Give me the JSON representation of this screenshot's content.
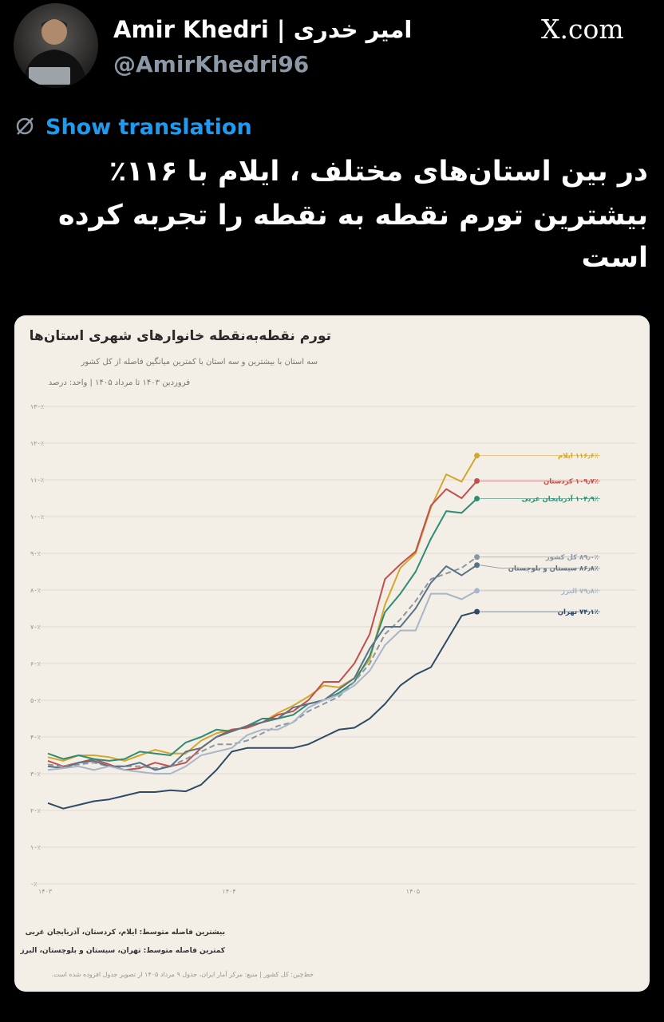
{
  "tweet": {
    "author_name": "Amir Khedri | امیر خدری",
    "handle": "@AmirKhedri96",
    "site": "X.com",
    "translate": "Show translation",
    "text": [
      "در بین استان‌های مختلف ، ایلام با ۱۱۶٪",
      "بیشترین تورم نقطه به نقطه را تجربه کرده",
      "است"
    ]
  },
  "chart_data": {
    "type": "line",
    "title": "تورم نقطه‌به‌نقطه خانوارهای شهری استان‌ها",
    "subtitle": "سه استان با بیشترین و سه استان با کمترین میانگین فاصله از کل کشور",
    "caption": "فروردین ۱۴۰۳ تا مرداد ۱۴۰۵ | واحد: درصد",
    "notes": [
      "بیشترین فاصله متوسط: ایلام، کردستان، آذربایجان غربی",
      "کمترین فاصله متوسط: تهران، سیستان و بلوچستان، البرز",
      "خط‌چین: کل کشور | منبع: مرکز آمار ایران، جدول ۹ مرداد ۱۴۰۵ از تصویر جدول افزوده شده است."
    ],
    "categories": [
      "۱۴۰۳",
      null,
      null,
      null,
      null,
      null,
      null,
      null,
      null,
      null,
      null,
      null,
      "۱۴۰۴",
      null,
      null,
      null,
      null,
      null,
      null,
      null,
      null,
      null,
      null,
      null,
      "۱۴۰۵",
      null,
      null,
      null,
      null
    ],
    "ylim": [
      0,
      130
    ],
    "yticks": [
      {
        "value": 0,
        "label": "۰٪"
      },
      {
        "value": 10,
        "label": "۱۰٪"
      },
      {
        "value": 20,
        "label": "۲۰٪"
      },
      {
        "value": 30,
        "label": "۳۰٪"
      },
      {
        "value": 40,
        "label": "۴۰٪"
      },
      {
        "value": 50,
        "label": "۵۰٪"
      },
      {
        "value": 60,
        "label": "۶۰٪"
      },
      {
        "value": 70,
        "label": "۷۰٪"
      },
      {
        "value": 80,
        "label": "۸۰٪"
      },
      {
        "value": 90,
        "label": "۹۰٪"
      },
      {
        "value": 100,
        "label": "۱۰۰٪"
      },
      {
        "value": 110,
        "label": "۱۱۰٪"
      },
      {
        "value": 120,
        "label": "۱۲۰٪"
      },
      {
        "value": 130,
        "label": "۱۳۰٪"
      }
    ],
    "grid": true,
    "series": [
      {
        "name": "ایلام",
        "color": "#d4a72c",
        "dashed": false,
        "values": [
          34.5,
          33.5,
          35,
          35,
          34.5,
          33.5,
          35,
          36.5,
          35.5,
          35.5,
          39,
          41,
          42,
          42.5,
          44,
          46.5,
          48.5,
          51,
          54,
          53.5,
          56,
          61,
          76,
          86,
          90,
          102.5,
          111.5,
          109.5,
          116.6
        ],
        "value_labels": [
          null,
          null,
          null,
          null,
          null,
          null,
          null,
          null,
          null,
          null,
          null,
          null,
          null,
          null,
          null,
          null,
          null,
          null,
          null,
          null,
          null,
          null,
          null,
          null,
          null,
          null,
          null,
          null,
          "۱۱۶٫۶٪"
        ]
      },
      {
        "name": "کردستان",
        "color": "#c0504d",
        "dashed": false,
        "values": [
          33.5,
          32,
          33,
          34,
          32.5,
          31,
          31.5,
          33,
          32,
          33,
          37,
          40,
          42,
          42.5,
          44,
          46,
          47,
          50,
          55,
          55,
          60,
          68,
          83,
          87,
          90.5,
          103,
          107.5,
          105,
          109.7
        ],
        "value_labels": [
          null,
          null,
          null,
          null,
          null,
          null,
          null,
          null,
          null,
          null,
          null,
          null,
          null,
          null,
          null,
          null,
          null,
          null,
          null,
          null,
          null,
          null,
          null,
          null,
          null,
          null,
          null,
          null,
          "۱۰۹٫۷٪"
        ]
      },
      {
        "name": "آذربایجان غربی",
        "color": "#2e8b74",
        "dashed": false,
        "values": [
          35.5,
          34,
          35,
          34,
          33.5,
          34,
          36,
          35.5,
          35,
          38.5,
          40,
          42,
          41.5,
          43,
          45,
          45,
          46,
          49,
          50,
          52,
          55,
          62,
          74,
          79,
          85,
          94,
          101.5,
          101,
          104.9
        ],
        "value_labels": [
          null,
          null,
          null,
          null,
          null,
          null,
          null,
          null,
          null,
          null,
          null,
          null,
          null,
          null,
          null,
          null,
          null,
          null,
          null,
          null,
          null,
          null,
          null,
          null,
          null,
          null,
          null,
          null,
          "۱۰۴٫۹٪"
        ]
      },
      {
        "name": "کل کشور",
        "color": "#8a96a3",
        "dashed": true,
        "values": [
          32.5,
          32,
          32.5,
          33,
          32,
          32,
          32,
          31.5,
          32,
          34,
          36,
          38,
          38,
          39,
          41,
          43,
          44,
          47,
          49,
          51,
          55,
          60,
          68,
          72,
          77,
          83,
          84.5,
          86,
          89.0
        ],
        "value_labels": [
          null,
          null,
          null,
          null,
          null,
          null,
          null,
          null,
          null,
          null,
          null,
          null,
          null,
          null,
          null,
          null,
          null,
          null,
          null,
          null,
          null,
          null,
          null,
          null,
          null,
          null,
          null,
          null,
          "۸۹٫۰٪"
        ]
      },
      {
        "name": "سیستان و بلوچستان",
        "color": "#5a7186",
        "dashed": false,
        "values": [
          32,
          31.5,
          33,
          33.5,
          32,
          32,
          33,
          31,
          32,
          36,
          37,
          40,
          41.5,
          43,
          44,
          45,
          48,
          49,
          50,
          53,
          56,
          64,
          70,
          70,
          75,
          82,
          86.5,
          84,
          86.8
        ],
        "value_labels": [
          null,
          null,
          null,
          null,
          null,
          null,
          null,
          null,
          null,
          null,
          null,
          null,
          null,
          null,
          null,
          null,
          null,
          null,
          null,
          null,
          null,
          null,
          null,
          null,
          null,
          null,
          null,
          null,
          "۸۶٫۸٪"
        ]
      },
      {
        "name": "البرز",
        "color": "#a7b6c6",
        "dashed": false,
        "values": [
          31,
          31.5,
          32,
          31,
          32,
          31,
          30.5,
          30,
          30,
          32,
          35,
          36,
          37,
          40.5,
          42,
          42,
          44,
          48,
          50,
          51.5,
          54,
          58,
          65,
          69,
          69,
          79,
          79,
          77.5,
          79.8
        ],
        "value_labels": [
          null,
          null,
          null,
          null,
          null,
          null,
          null,
          null,
          null,
          null,
          null,
          null,
          null,
          null,
          null,
          null,
          null,
          null,
          null,
          null,
          null,
          null,
          null,
          null,
          null,
          null,
          null,
          null,
          "۷۹٫۸٪"
        ]
      },
      {
        "name": "تهران",
        "color": "#2e4a66",
        "dashed": false,
        "values": [
          22,
          20.5,
          21.5,
          22.5,
          23,
          24,
          25,
          25,
          25.5,
          25.2,
          27,
          31,
          36,
          37,
          37,
          37,
          37,
          38,
          40,
          42,
          42.5,
          45,
          49,
          54,
          57,
          59,
          66,
          73,
          74.1
        ],
        "value_labels": [
          null,
          null,
          null,
          null,
          null,
          null,
          null,
          null,
          null,
          null,
          null,
          null,
          null,
          null,
          null,
          null,
          null,
          null,
          null,
          null,
          null,
          null,
          null,
          null,
          null,
          null,
          null,
          null,
          "۷۴٫۱٪"
        ]
      }
    ]
  }
}
